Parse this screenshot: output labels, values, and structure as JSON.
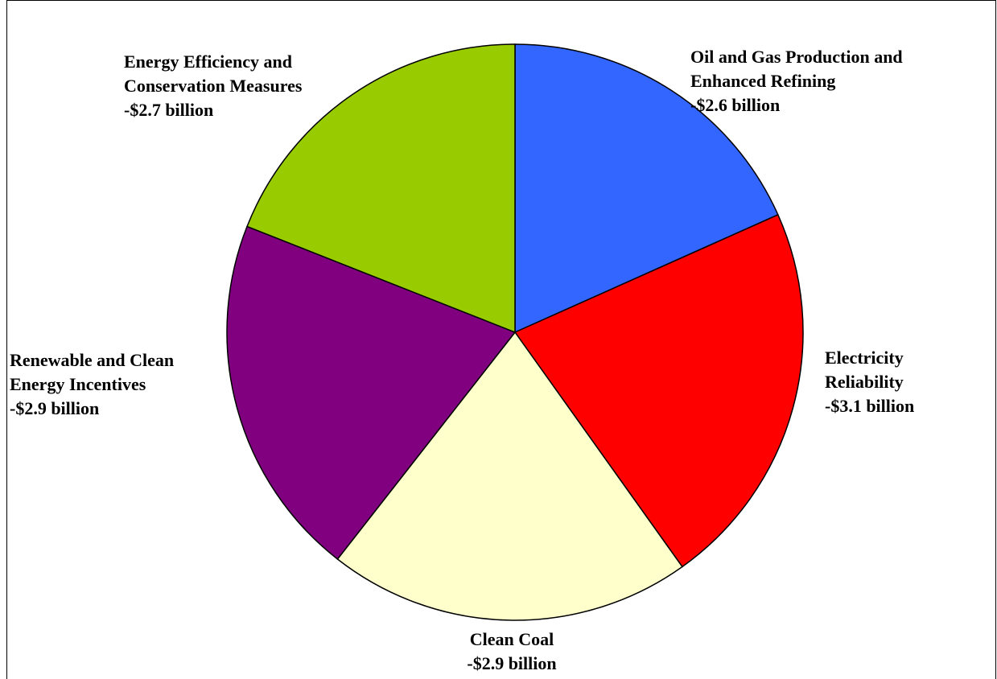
{
  "chart_data": {
    "type": "pie",
    "slices": [
      {
        "label_lines": [
          "Oil and Gas Production and",
          "Enhanced Refining",
          "-$2.6 billion"
        ],
        "value": 2.6,
        "color": "#3366FF"
      },
      {
        "label_lines": [
          "Electricity",
          "Reliability",
          "-$3.1 billion"
        ],
        "value": 3.1,
        "color": "#FF0000"
      },
      {
        "label_lines": [
          "Clean Coal",
          "-$2.9 billion"
        ],
        "value": 2.9,
        "color": "#FFFFCC"
      },
      {
        "label_lines": [
          "Renewable and Clean",
          "Energy Incentives",
          "-$2.9 billion"
        ],
        "value": 2.9,
        "color": "#800080"
      },
      {
        "label_lines": [
          "Energy Efficiency and",
          "Conservation Measures",
          "-$2.7 billion"
        ],
        "value": 2.7,
        "color": "#99CC00"
      }
    ],
    "start_angle": "12 o'clock",
    "direction": "clockwise"
  }
}
